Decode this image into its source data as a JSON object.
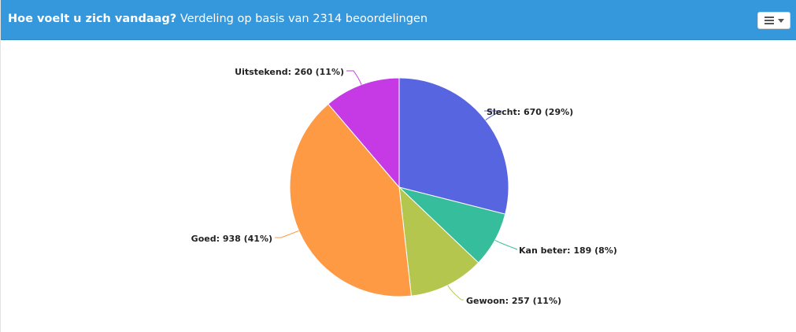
{
  "header": {
    "title_bold": "Hoe voelt u zich vandaag?",
    "title_rest": "Verdeling op basis van 2314 beoordelingen"
  },
  "menu_button": {
    "icon": "hamburger-menu-icon"
  },
  "chart_data": {
    "type": "pie",
    "title": "",
    "total": 2314,
    "slices": [
      {
        "name": "Slecht",
        "value": 670,
        "percent": 29,
        "color": "#5865e0",
        "label": "Slecht: 670 (29%)"
      },
      {
        "name": "Kan beter",
        "value": 189,
        "percent": 8,
        "color": "#35bd9c",
        "label": "Kan beter: 189 (8%)"
      },
      {
        "name": "Gewoon",
        "value": 257,
        "percent": 11,
        "color": "#b5c64f",
        "label": "Gewoon: 257 (11%)"
      },
      {
        "name": "Goed",
        "value": 938,
        "percent": 41,
        "color": "#ff9a44",
        "label": "Goed: 938 (41%)"
      },
      {
        "name": "Uitstekend",
        "value": 260,
        "percent": 11,
        "color": "#c53ae5",
        "label": "Uitstekend: 260 (11%)"
      }
    ]
  }
}
